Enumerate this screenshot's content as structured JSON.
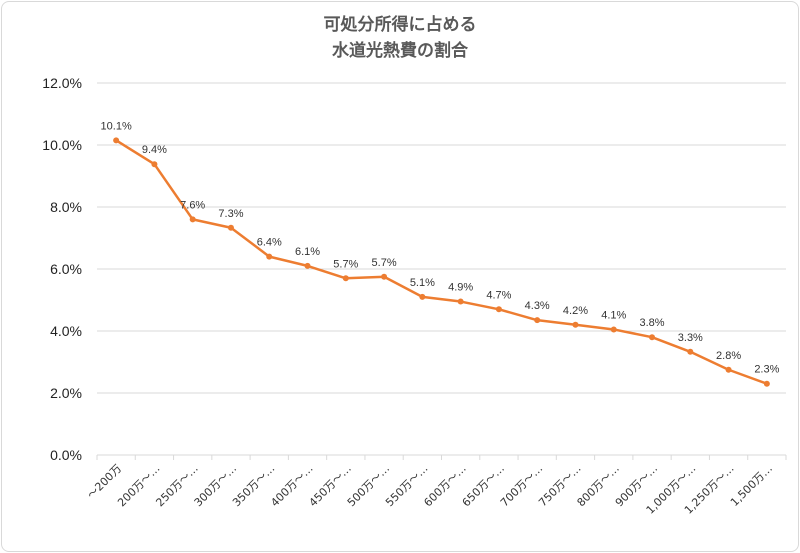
{
  "chart_data": {
    "type": "line",
    "title": "可処分所得に占める",
    "subtitle": "水道光熱費の割合",
    "xlabel": "",
    "ylabel": "",
    "ylim": [
      0,
      12
    ],
    "y_ticks": [
      "0.0%",
      "2.0%",
      "4.0%",
      "6.0%",
      "8.0%",
      "10.0%",
      "12.0%"
    ],
    "categories": [
      "～200万",
      "200万～…",
      "250万～…",
      "300万～…",
      "350万～…",
      "400万～…",
      "450万～…",
      "500万～…",
      "550万～…",
      "600万～…",
      "650万～…",
      "700万～…",
      "750万～…",
      "800万～…",
      "900万～…",
      "1,000万～…",
      "1,250万～…",
      "1,500万…"
    ],
    "series": [
      {
        "values": [
          10.1,
          9.4,
          7.6,
          7.3,
          6.4,
          6.1,
          5.7,
          5.7,
          5.1,
          4.9,
          4.7,
          4.3,
          4.2,
          4.1,
          3.8,
          3.3,
          2.8,
          2.3
        ],
        "plot_values": [
          10.15,
          9.38,
          7.6,
          7.33,
          6.4,
          6.1,
          5.7,
          5.75,
          5.1,
          4.95,
          4.7,
          4.35,
          4.2,
          4.05,
          3.8,
          3.33,
          2.75,
          2.3
        ],
        "labels": [
          "10.1%",
          "9.4%",
          "7.6%",
          "7.3%",
          "6.4%",
          "6.1%",
          "5.7%",
          "5.7%",
          "5.1%",
          "4.9%",
          "4.7%",
          "4.3%",
          "4.2%",
          "4.1%",
          "3.8%",
          "3.3%",
          "2.8%",
          "2.3%"
        ],
        "color": "#ED7D31"
      }
    ],
    "grid": true,
    "legend": "none"
  }
}
